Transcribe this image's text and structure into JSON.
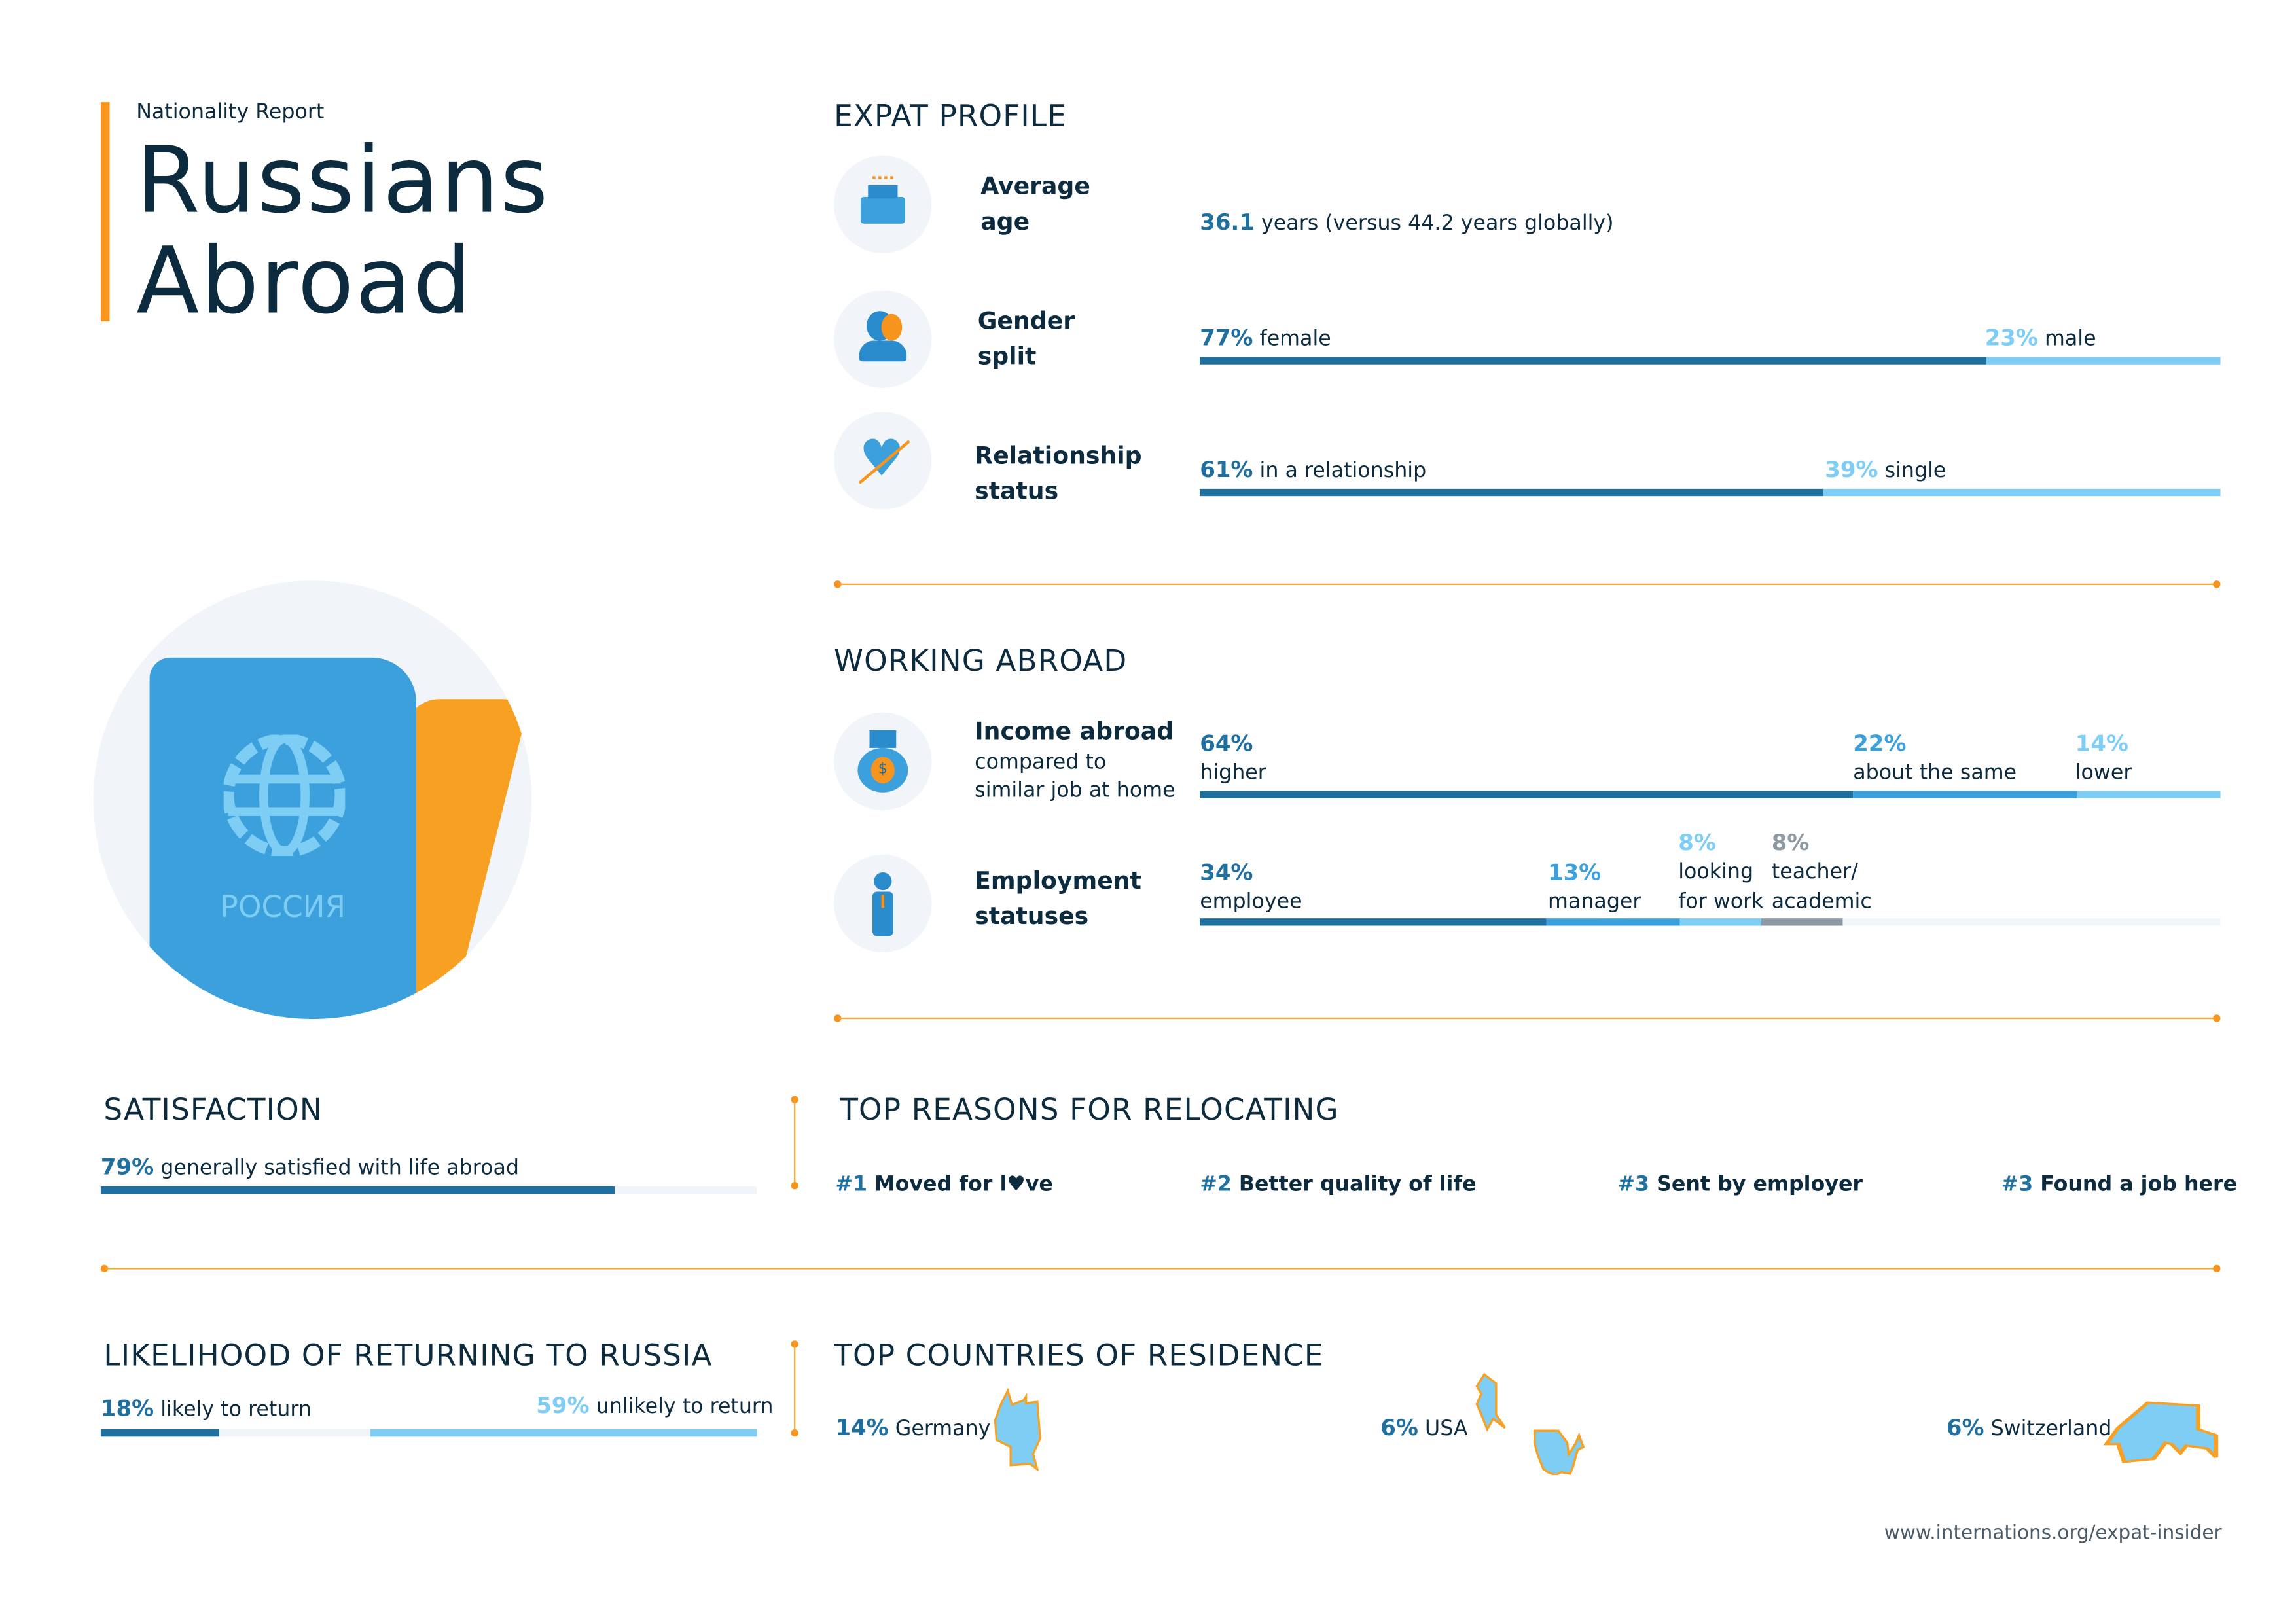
{
  "header": {
    "kicker": "Nationality Report",
    "title_line1": "Russians",
    "title_line2": "Abroad",
    "passport_text": "РОССИЯ"
  },
  "expat_profile": {
    "title": "EXPAT PROFILE",
    "age": {
      "label1": "Average",
      "label2": "age",
      "value": "36.1",
      "text": "years (versus 44.2 years globally)"
    },
    "gender": {
      "label1": "Gender",
      "label2": "split",
      "female_pct": "77%",
      "female": "female",
      "male_pct": "23%",
      "male": "male",
      "female_value": 77
    },
    "relationship": {
      "label1": "Relationship",
      "label2": "status",
      "rel_pct": "61%",
      "rel": "in a relationship",
      "single_pct": "39%",
      "single": "single",
      "rel_value": 61
    }
  },
  "working": {
    "title": "WORKING ABROAD",
    "income": {
      "label": "Income abroad",
      "sub1": "compared to",
      "sub2": "similar job at home",
      "items": [
        {
          "pct": "64%",
          "text": "higher",
          "value": 64
        },
        {
          "pct": "22%",
          "text": "about the same",
          "value": 22
        },
        {
          "pct": "14%",
          "text": "lower",
          "value": 14
        }
      ]
    },
    "employment": {
      "label1": "Employment",
      "label2": "statuses",
      "items": [
        {
          "pct": "34%",
          "text1": "employee",
          "value": 34
        },
        {
          "pct": "13%",
          "text1": "manager",
          "value": 13
        },
        {
          "pct": "8%",
          "text1": "looking",
          "text2": "for work",
          "value": 8
        },
        {
          "pct": "8%",
          "text1": "teacher/",
          "text2": "academic",
          "value": 8
        }
      ]
    }
  },
  "satisfaction": {
    "title": "SATISFACTION",
    "pct": "79%",
    "text": "generally satisfied with life abroad",
    "value": 79
  },
  "reasons": {
    "title": "TOP REASONS FOR RELOCATING",
    "items": [
      {
        "rank": "#1",
        "pre": "Moved for l",
        "post": "ve"
      },
      {
        "rank": "#2",
        "text": "Better quality of life"
      },
      {
        "rank": "#3",
        "text": "Sent by employer"
      },
      {
        "rank": "#3",
        "text": "Found a job here"
      }
    ]
  },
  "returning": {
    "title": "LIKELIHOOD OF RETURNING TO RUSSIA",
    "likely_pct": "18%",
    "likely": "likely to return",
    "unlikely_pct": "59%",
    "unlikely": "unlikely to return",
    "likely_value": 18,
    "unlikely_value": 59
  },
  "countries": {
    "title": "TOP COUNTRIES OF RESIDENCE",
    "items": [
      {
        "pct": "14%",
        "name": "Germany"
      },
      {
        "pct": "6%",
        "name": "USA"
      },
      {
        "pct": "6%",
        "name": "Switzerland"
      }
    ]
  },
  "footer": {
    "url": "www.internations.org/expat-insider"
  },
  "colors": {
    "navy": "#0d2b3e",
    "dark_blue": "#1f6f9f",
    "mid_blue": "#3ba0dc",
    "light_blue": "#7dcdf4",
    "grey": "#8e9aa3",
    "orange": "#f7941d",
    "track": "#f1f5fa"
  }
}
